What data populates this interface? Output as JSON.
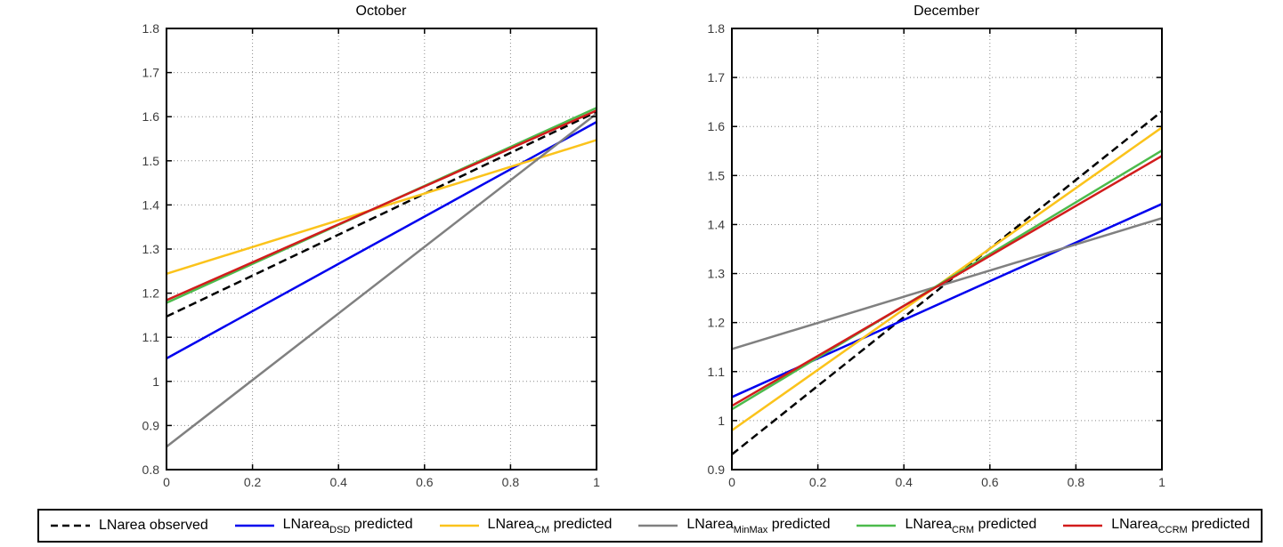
{
  "figure": {
    "background": "#ffffff",
    "axis_color": "#000000",
    "grid_color": "#8a8a8a",
    "tick_label_color": "#3c3c3c"
  },
  "legend": {
    "items": [
      {
        "id": "observed",
        "prefix": "LNarea",
        "sub": "",
        "suffix": " observed",
        "color": "#000000",
        "dash": true
      },
      {
        "id": "dsd",
        "prefix": "LNarea",
        "sub": "DSD",
        "suffix": " predicted",
        "color": "#0000EE",
        "dash": false
      },
      {
        "id": "cm",
        "prefix": "LNarea",
        "sub": "CM",
        "suffix": " predicted",
        "color": "#FBC31B",
        "dash": false
      },
      {
        "id": "minmax",
        "prefix": "LNarea",
        "sub": "MinMax",
        "suffix": " predicted",
        "color": "#808080",
        "dash": false
      },
      {
        "id": "crm",
        "prefix": "LNarea",
        "sub": "CRM",
        "suffix": " predicted",
        "color": "#4CBB4C",
        "dash": false
      },
      {
        "id": "ccrm",
        "prefix": "LNarea",
        "sub": "CCRM",
        "suffix": " predicted",
        "color": "#D21C1C",
        "dash": false
      }
    ]
  },
  "chart_data": [
    {
      "type": "line",
      "title": "October",
      "xlabel": "",
      "ylabel": "",
      "xlim": [
        0,
        1
      ],
      "ylim": [
        0.8,
        1.8
      ],
      "grid": true,
      "legend_position": "bottom",
      "xticks": [
        0,
        0.2,
        0.4,
        0.6,
        0.8,
        1
      ],
      "xtick_labels": [
        "0",
        "0.2",
        "0.4",
        "0.6",
        "0.8",
        "1"
      ],
      "yticks": [
        0.8,
        0.9,
        1.0,
        1.1,
        1.2,
        1.3,
        1.4,
        1.5,
        1.6,
        1.7,
        1.8
      ],
      "ytick_labels": [
        "0.8",
        "0.9",
        "1",
        "1.1",
        "1.2",
        "1.3",
        "1.4",
        "1.5",
        "1.6",
        "1.7",
        "1.8"
      ],
      "series": [
        {
          "id": "observed",
          "name": "LNarea observed",
          "x": [
            0,
            1
          ],
          "y": [
            1.147,
            1.611
          ],
          "color": "#000000",
          "dash": true
        },
        {
          "id": "dsd",
          "name": "LNarea_DSD predicted",
          "x": [
            0,
            1
          ],
          "y": [
            1.052,
            1.588
          ],
          "color": "#0000EE",
          "dash": false
        },
        {
          "id": "cm",
          "name": "LNarea_CM predicted",
          "x": [
            0,
            1
          ],
          "y": [
            1.244,
            1.547
          ],
          "color": "#FBC31B",
          "dash": false
        },
        {
          "id": "minmax",
          "name": "LNarea_MinMax predicted",
          "x": [
            0,
            1
          ],
          "y": [
            0.852,
            1.607
          ],
          "color": "#808080",
          "dash": false
        },
        {
          "id": "crm",
          "name": "LNarea_CRM predicted",
          "x": [
            0,
            1
          ],
          "y": [
            1.178,
            1.62
          ],
          "color": "#4CBB4C",
          "dash": false
        },
        {
          "id": "ccrm",
          "name": "LNarea_CCRM predicted",
          "x": [
            0,
            1
          ],
          "y": [
            1.184,
            1.614
          ],
          "color": "#D21C1C",
          "dash": false
        }
      ]
    },
    {
      "type": "line",
      "title": "December",
      "xlabel": "",
      "ylabel": "",
      "xlim": [
        0,
        1
      ],
      "ylim": [
        0.9,
        1.8
      ],
      "grid": true,
      "legend_position": "bottom",
      "xticks": [
        0,
        0.2,
        0.4,
        0.6,
        0.8,
        1
      ],
      "xtick_labels": [
        "0",
        "0.2",
        "0.4",
        "0.6",
        "0.8",
        "1"
      ],
      "yticks": [
        0.9,
        1.0,
        1.1,
        1.2,
        1.3,
        1.4,
        1.5,
        1.6,
        1.7,
        1.8
      ],
      "ytick_labels": [
        "0.9",
        "1",
        "1.1",
        "1.2",
        "1.3",
        "1.4",
        "1.5",
        "1.6",
        "1.7",
        "1.8"
      ],
      "series": [
        {
          "id": "observed",
          "name": "LNarea observed",
          "x": [
            0,
            1
          ],
          "y": [
            0.931,
            1.631
          ],
          "color": "#000000",
          "dash": true
        },
        {
          "id": "dsd",
          "name": "LNarea_DSD predicted",
          "x": [
            0,
            1
          ],
          "y": [
            1.048,
            1.442
          ],
          "color": "#0000EE",
          "dash": false
        },
        {
          "id": "cm",
          "name": "LNarea_CM predicted",
          "x": [
            0,
            1
          ],
          "y": [
            0.98,
            1.598
          ],
          "color": "#FBC31B",
          "dash": false
        },
        {
          "id": "minmax",
          "name": "LNarea_MinMax predicted",
          "x": [
            0,
            1
          ],
          "y": [
            1.146,
            1.413
          ],
          "color": "#808080",
          "dash": false
        },
        {
          "id": "crm",
          "name": "LNarea_CRM predicted",
          "x": [
            0,
            1
          ],
          "y": [
            1.023,
            1.551
          ],
          "color": "#4CBB4C",
          "dash": false
        },
        {
          "id": "ccrm",
          "name": "LNarea_CCRM predicted",
          "x": [
            0,
            1
          ],
          "y": [
            1.03,
            1.54
          ],
          "color": "#D21C1C",
          "dash": false
        }
      ]
    }
  ]
}
